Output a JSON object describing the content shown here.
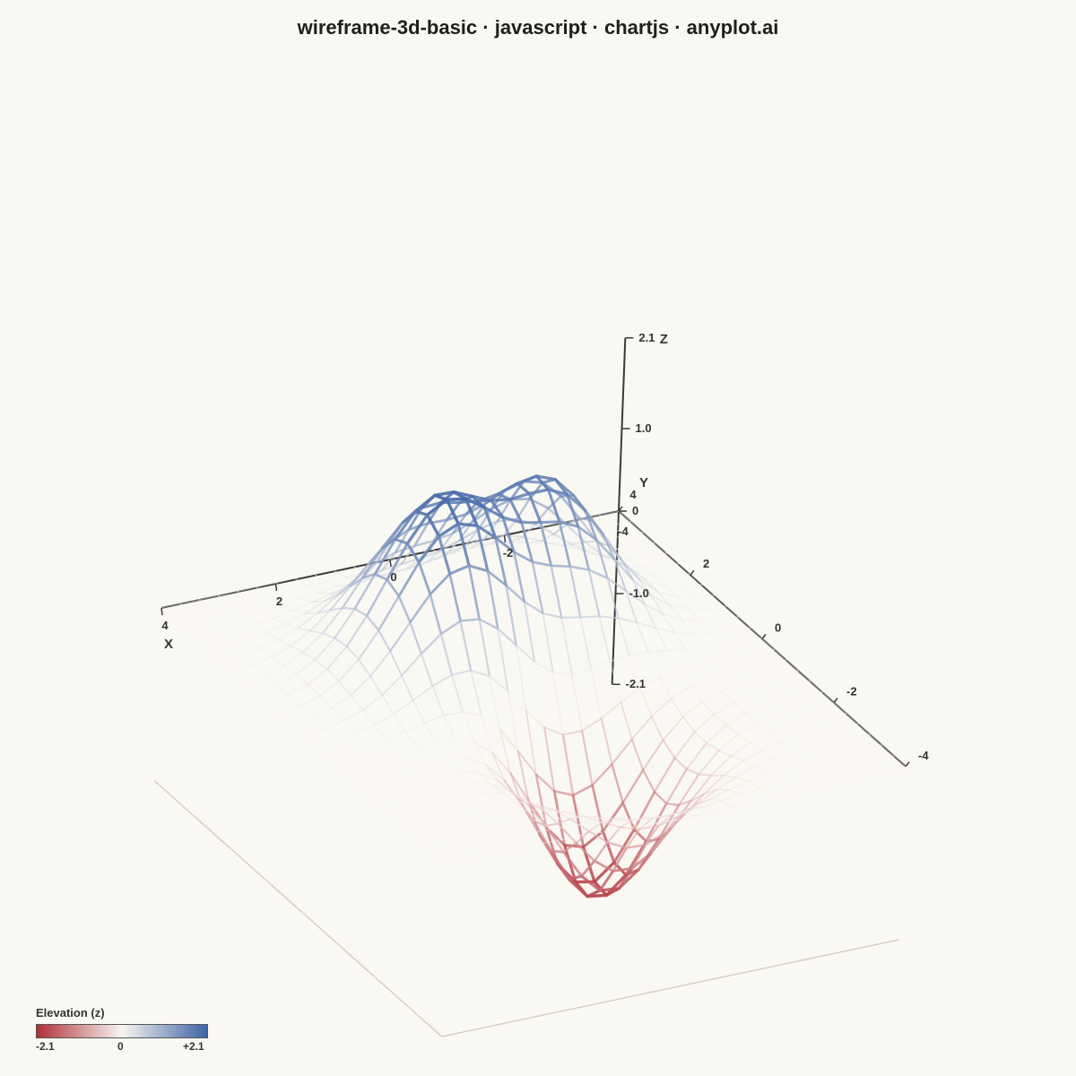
{
  "title": "wireframe-3d-basic · javascript · chartjs · anyplot.ai",
  "chart_data": {
    "type": "wireframe-3d",
    "title": "wireframe-3d-basic · javascript · chartjs · anyplot.ai",
    "function": "z = 2·exp(−((x−1)²+(y−1)²)/2) + 1.6·exp(−((x+1.2)²+(y−1.6)²)/1.6) − 2·exp(−((x+0.2)²+(y+1.5)²)/1.8)",
    "x_range": [
      -4,
      4
    ],
    "y_range": [
      -4,
      4
    ],
    "z_range": [
      -2.1,
      2.1
    ],
    "grid_points": 25,
    "axes": {
      "x": {
        "label": "X",
        "ticks": [
          "-2",
          "0",
          "2",
          "4"
        ]
      },
      "y": {
        "label": "Y",
        "ticks": [
          "-4",
          "-2",
          "0",
          "2",
          "4"
        ]
      },
      "z": {
        "label": "Z",
        "ticks": [
          "2.1",
          "1.0",
          "0",
          "-1.0",
          "-2.1"
        ]
      }
    },
    "colorscale": {
      "low": "#B0313A",
      "mid": "#f7f4f0",
      "high": "#3E64A6"
    }
  },
  "legend": {
    "title": "Elevation (z)",
    "min_label": "-2.1",
    "mid_label": "0",
    "max_label": "+2.1"
  }
}
